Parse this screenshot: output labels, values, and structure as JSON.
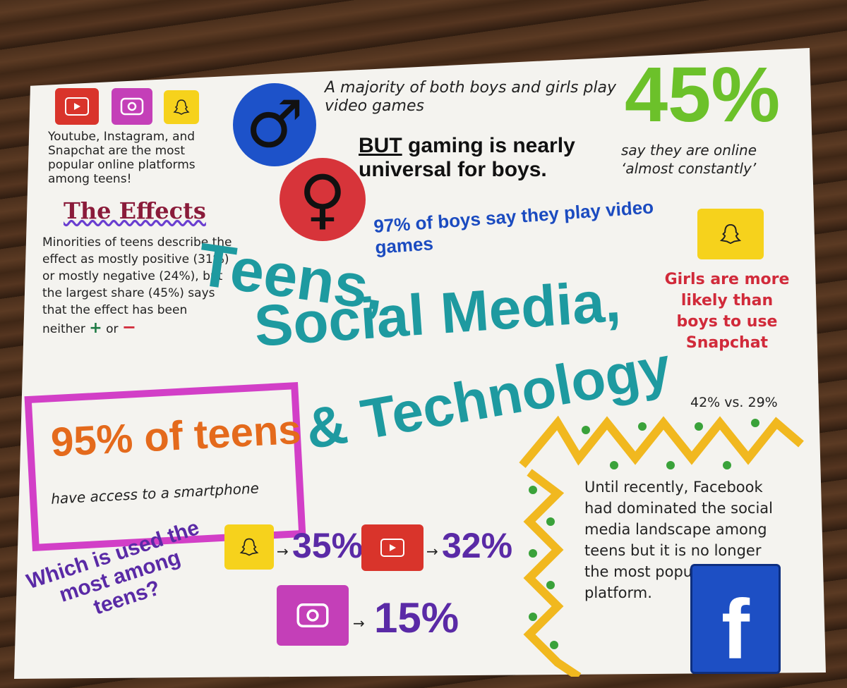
{
  "platforms": {
    "text": "Youtube, Instagram, and Snapchat are the most popular online platforms among teens!"
  },
  "effects": {
    "heading": "The Effects",
    "body": "Minorities of teens describe the effect as mostly positive (31%) or mostly negative (24%), but the largest share (45%) says that the effect has been neither",
    "plus_symbol": "+",
    "or_text": "or",
    "minus_symbol": "−"
  },
  "gaming": {
    "line1": "A majority of both boys and girls play video games",
    "but": "BUT",
    "line2": "gaming is nearly universal for boys.",
    "stat": "97% of boys say they play video games",
    "male_symbol": "♂",
    "female_symbol": "♀"
  },
  "online": {
    "percent": "45%",
    "text": "say they are online ‘almost constantly’"
  },
  "title": {
    "line1": "Teens,",
    "line2": "Social Media,",
    "line3": "& Technology"
  },
  "girls": {
    "text": "Girls are more likely than boys to use Snapchat",
    "stat": "42% vs. 29%"
  },
  "smartphone": {
    "stat": "95% of teens",
    "text": "have access to a smartphone"
  },
  "usage": {
    "question": "Which is used the most among teens?",
    "items": [
      {
        "platform": "snapchat",
        "arrow": "→",
        "value": "35%"
      },
      {
        "platform": "youtube",
        "arrow": "→",
        "value": "32%"
      },
      {
        "platform": "instagram",
        "arrow": "→",
        "value": "15%"
      }
    ]
  },
  "facebook": {
    "text": "Until recently, Facebook had dominated the social media landscape among teens but it is no longer the most popular online platform.",
    "logo_letter": "f"
  },
  "colors": {
    "title": "#1e9aa0",
    "purple": "#5a2aa6",
    "youtube": "#d9342b",
    "instagram": "#c43fb8",
    "snapchat": "#f6d21c",
    "facebook": "#1d4fc4",
    "zigzag": "#f1b81f",
    "dots": "#3aa23a"
  }
}
